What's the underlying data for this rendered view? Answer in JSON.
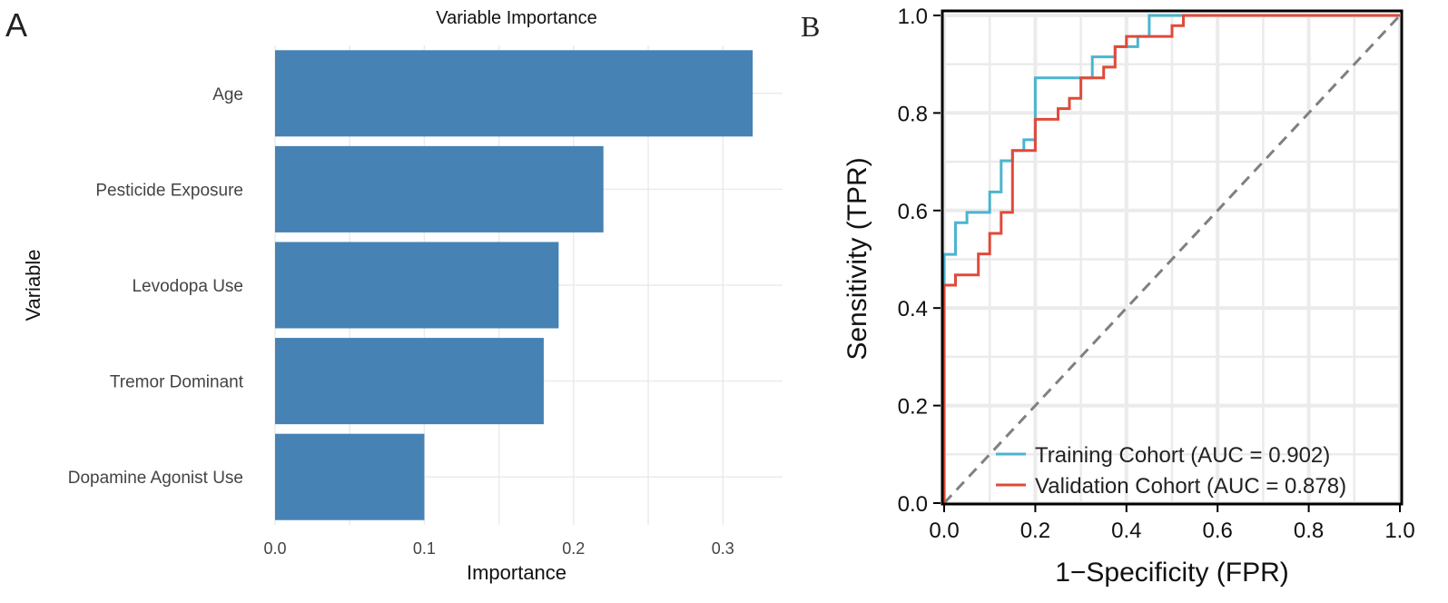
{
  "panels": {
    "a_label": "A",
    "b_label": "B"
  },
  "chart_data": [
    {
      "type": "bar",
      "orientation": "horizontal",
      "title": "Variable Importance",
      "xlabel": "Importance",
      "ylabel": "Variable",
      "categories": [
        "Age",
        "Pesticide Exposure",
        "Levodopa Use",
        "Tremor Dominant",
        "Dopamine Agonist Use"
      ],
      "values": [
        0.32,
        0.22,
        0.19,
        0.18,
        0.1
      ],
      "xlim": [
        0,
        0.34
      ],
      "xticks": [
        0.0,
        0.1,
        0.2,
        0.3
      ],
      "xtick_labels": [
        "0.0",
        "0.1",
        "0.2",
        "0.3"
      ],
      "bar_color": "#4682b4",
      "grid": true
    },
    {
      "type": "line",
      "title": "",
      "xlabel": "1−Specificity (FPR)",
      "ylabel": "Sensitivity (TPR)",
      "xlim": [
        0,
        1
      ],
      "ylim": [
        0,
        1
      ],
      "xticks": [
        0.0,
        0.2,
        0.4,
        0.6,
        0.8,
        1.0
      ],
      "yticks": [
        0.0,
        0.2,
        0.4,
        0.6,
        0.8,
        1.0
      ],
      "xtick_labels": [
        "0.0",
        "0.2",
        "0.4",
        "0.6",
        "0.8",
        "1.0"
      ],
      "ytick_labels": [
        "0.0",
        "0.2",
        "0.4",
        "0.6",
        "0.8",
        "1.0"
      ],
      "grid": true,
      "legend_position": "bottom-right",
      "series": [
        {
          "name": "Training Cohort (AUC = 0.902)",
          "color": "#4bb4d0",
          "x": [
            0,
            0,
            0.025,
            0.025,
            0.05,
            0.05,
            0.1,
            0.1,
            0.125,
            0.125,
            0.15,
            0.15,
            0.175,
            0.175,
            0.2,
            0.2,
            0.325,
            0.325,
            0.375,
            0.375,
            0.425,
            0.425,
            0.45,
            0.45,
            1.0
          ],
          "y": [
            0,
            0.51,
            0.51,
            0.575,
            0.575,
            0.596,
            0.596,
            0.638,
            0.638,
            0.702,
            0.702,
            0.723,
            0.723,
            0.745,
            0.745,
            0.872,
            0.872,
            0.915,
            0.915,
            0.936,
            0.936,
            0.957,
            0.957,
            1.0,
            1.0
          ]
        },
        {
          "name": "Validation Cohort (AUC = 0.878)",
          "color": "#e04a3a",
          "x": [
            0,
            0,
            0.01,
            0.01,
            0.025,
            0.025,
            0.075,
            0.075,
            0.1,
            0.1,
            0.125,
            0.125,
            0.14,
            0.14,
            0.15,
            0.15,
            0.2,
            0.2,
            0.25,
            0.25,
            0.275,
            0.275,
            0.3,
            0.3,
            0.35,
            0.35,
            0.375,
            0.375,
            0.4,
            0.4,
            0.5,
            0.5,
            0.525,
            0.525,
            1.0
          ],
          "y": [
            0,
            0.447,
            0.447,
            0.447,
            0.447,
            0.468,
            0.468,
            0.511,
            0.511,
            0.553,
            0.553,
            0.596,
            0.596,
            0.596,
            0.596,
            0.723,
            0.723,
            0.787,
            0.787,
            0.809,
            0.809,
            0.83,
            0.83,
            0.872,
            0.872,
            0.894,
            0.894,
            0.936,
            0.936,
            0.957,
            0.957,
            0.979,
            0.979,
            1.0,
            1.0
          ]
        },
        {
          "name": "Reference",
          "color": "#808080",
          "dashed": true,
          "x": [
            0,
            1
          ],
          "y": [
            0,
            1
          ]
        }
      ]
    }
  ]
}
